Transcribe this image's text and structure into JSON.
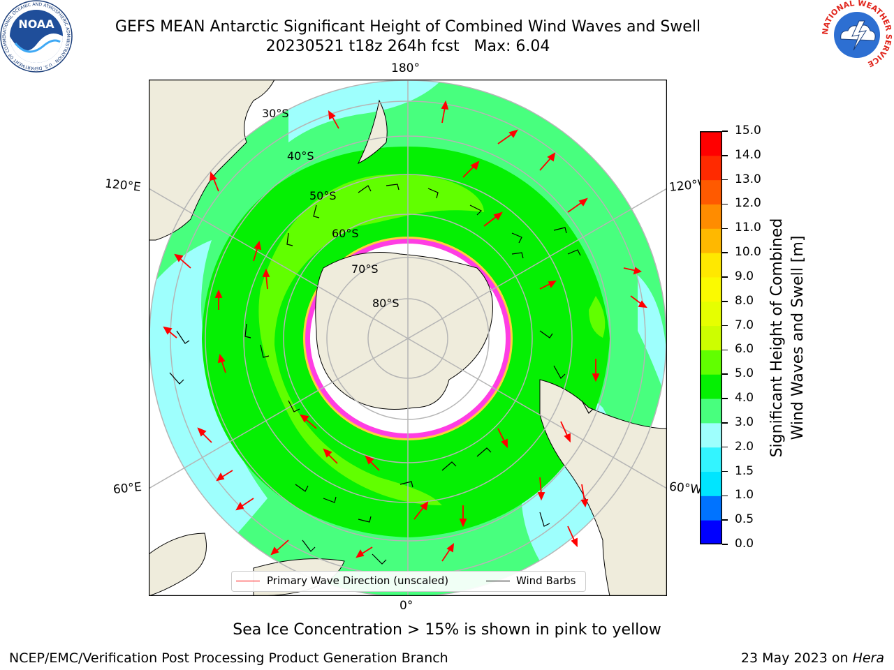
{
  "header": {
    "title_line1": "GEFS MEAN Antarctic Significant Height of Combined Wind Waves and Swell",
    "title_line2": "20230521 t18z 264h fcst   Max: 6.04"
  },
  "logos": {
    "noaa_text": "NOAA",
    "noaa_ring_text": "NATIONAL OCEANIC AND ATMOSPHERIC ADMINISTRATION · U.S. DEPARTMENT OF COMMERCE ·",
    "nws_ring_text": "NATIONAL WEATHER SERVICE"
  },
  "map": {
    "projection": "South Polar Stereographic",
    "lon_labels": {
      "top": "180°",
      "bottom": "0°",
      "upper_left": "120°E",
      "upper_right": "120°W",
      "lower_left": "60°E",
      "lower_right": "60°W"
    },
    "lat_labels": [
      "30°S",
      "40°S",
      "50°S",
      "60°S",
      "70°S",
      "80°S"
    ],
    "colors": {
      "land": "#efecdc",
      "ice": "#ffffff",
      "sea_ice": "#ff3de3",
      "sea_ice_edge": "#ffcf3c",
      "coast": "#000000",
      "graticule": "#b5b5b5",
      "wave_arrow": "#ff0000",
      "wind_barb": "#000000"
    }
  },
  "legend": {
    "wave_label": "Primary Wave Direction (unscaled)",
    "wind_label": "Wind Barbs"
  },
  "colorbar": {
    "label_line1": "Significant Height of Combined",
    "label_line2": "Wind Waves and Swell [m]",
    "ticks": [
      "0.0",
      "0.5",
      "1.0",
      "1.5",
      "2.0",
      "3.0",
      "4.0",
      "5.0",
      "6.0",
      "7.0",
      "8.0",
      "9.0",
      "10.0",
      "11.0",
      "12.0",
      "13.0",
      "14.0",
      "15.0"
    ],
    "colors": [
      "#0000ff",
      "#0073ff",
      "#00e5ff",
      "#33f4ff",
      "#9efffd",
      "#48ff7e",
      "#05f003",
      "#61ff00",
      "#cdfe00",
      "#e6ff00",
      "#fbfa00",
      "#ffe800",
      "#ffb800",
      "#ff8c00",
      "#ff5a00",
      "#ff2a00",
      "#ff0000"
    ]
  },
  "note": "Sea Ice Concentration > 15% is shown in pink to yellow",
  "footer": {
    "left": "NCEP/EMC/Verification Post Processing Product Generation Branch",
    "right_date": "23 May 2023 on",
    "right_host": "Hera"
  }
}
